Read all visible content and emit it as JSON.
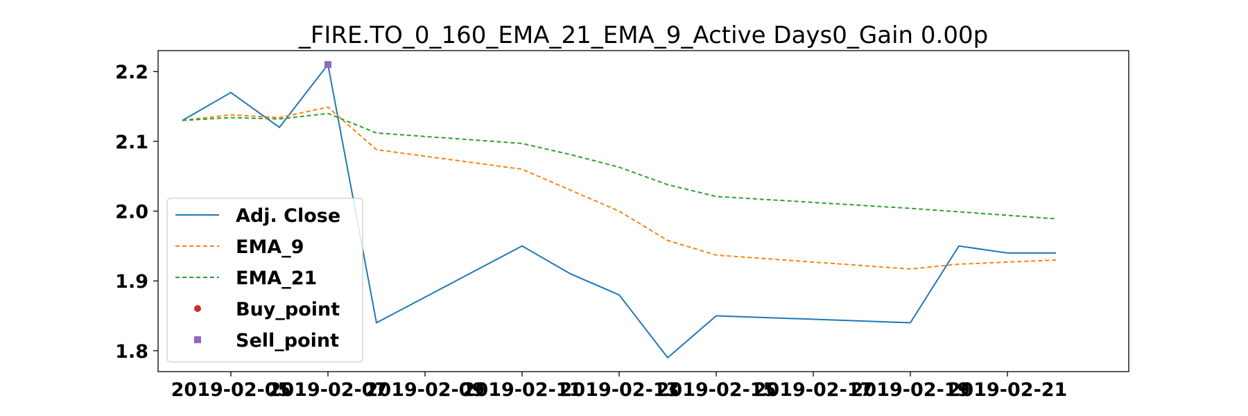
{
  "chart_data": {
    "type": "line",
    "title": "_FIRE.TO_0_160_EMA_21_EMA_9_Active Days0_Gain   0.00p",
    "xlabel": "",
    "ylabel": "",
    "x": [
      "2019-02-04",
      "2019-02-05",
      "2019-02-06",
      "2019-02-07",
      "2019-02-08",
      "2019-02-11",
      "2019-02-12",
      "2019-02-13",
      "2019-02-14",
      "2019-02-15",
      "2019-02-19",
      "2019-02-20",
      "2019-02-21",
      "2019-02-22"
    ],
    "x_ticks": [
      "2019-02-05",
      "2019-02-07",
      "2019-02-09",
      "2019-02-11",
      "2019-02-13",
      "2019-02-15",
      "2019-02-17",
      "2019-02-19",
      "2019-02-21"
    ],
    "ylim": [
      1.77,
      2.23
    ],
    "y_ticks": [
      "1.8",
      "1.9",
      "2.0",
      "2.1",
      "2.2"
    ],
    "grid": false,
    "legend_position": "center-left",
    "series": [
      {
        "name": "Adj. Close",
        "style": "solid",
        "color": "#1f77b4",
        "values": [
          2.13,
          2.17,
          2.12,
          2.21,
          1.84,
          1.95,
          1.91,
          1.88,
          1.79,
          1.85,
          1.84,
          1.95,
          1.94,
          1.94
        ]
      },
      {
        "name": "EMA_9",
        "style": "dashed",
        "color": "#ff7f0e",
        "values": [
          2.13,
          2.138,
          2.134,
          2.149,
          2.088,
          2.06,
          2.03,
          2.0,
          1.958,
          1.937,
          1.917,
          1.924,
          1.927,
          1.93
        ]
      },
      {
        "name": "EMA_21",
        "style": "dashed",
        "color": "#2ca02c",
        "values": [
          2.13,
          2.134,
          2.132,
          2.14,
          2.112,
          2.097,
          2.081,
          2.063,
          2.038,
          2.021,
          2.004,
          1.999,
          1.994,
          1.989
        ]
      }
    ],
    "buy_points": {
      "name": "Buy_point",
      "color": "#d62728",
      "marker": "circle",
      "points": []
    },
    "sell_points": {
      "name": "Sell_point",
      "color": "#9467bd",
      "marker": "square",
      "points": [
        {
          "x": "2019-02-07",
          "y": 2.21
        }
      ]
    }
  }
}
